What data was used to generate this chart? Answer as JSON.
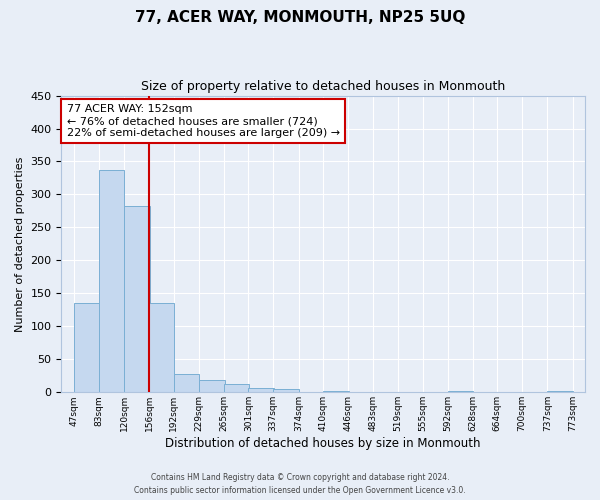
{
  "title": "77, ACER WAY, MONMOUTH, NP25 5UQ",
  "subtitle": "Size of property relative to detached houses in Monmouth",
  "xlabel": "Distribution of detached houses by size in Monmouth",
  "ylabel": "Number of detached properties",
  "bar_left_edges": [
    47,
    83,
    120,
    156,
    192,
    229,
    265,
    301,
    337,
    374,
    410,
    446,
    483,
    519,
    555,
    592,
    628,
    664,
    700,
    737
  ],
  "bar_heights": [
    135,
    337,
    282,
    135,
    27,
    18,
    13,
    7,
    5,
    0,
    2,
    0,
    0,
    0,
    0,
    2,
    0,
    0,
    0,
    2
  ],
  "bin_width": 37,
  "tick_labels": [
    "47sqm",
    "83sqm",
    "120sqm",
    "156sqm",
    "192sqm",
    "229sqm",
    "265sqm",
    "301sqm",
    "337sqm",
    "374sqm",
    "410sqm",
    "446sqm",
    "483sqm",
    "519sqm",
    "555sqm",
    "592sqm",
    "628sqm",
    "664sqm",
    "700sqm",
    "737sqm",
    "773sqm"
  ],
  "bar_color": "#c5d8ef",
  "bar_edge_color": "#7aafd4",
  "vline_x": 156,
  "vline_color": "#cc0000",
  "annotation_title": "77 ACER WAY: 152sqm",
  "annotation_line1": "← 76% of detached houses are smaller (724)",
  "annotation_line2": "22% of semi-detached houses are larger (209) →",
  "annotation_box_color": "#cc0000",
  "ylim": [
    0,
    450
  ],
  "xlim_left": 28,
  "xlim_right": 792,
  "footer1": "Contains HM Land Registry data © Crown copyright and database right 2024.",
  "footer2": "Contains public sector information licensed under the Open Government Licence v3.0.",
  "background_color": "#e8eef7",
  "grid_color": "#ffffff",
  "title_fontsize": 11,
  "subtitle_fontsize": 9
}
